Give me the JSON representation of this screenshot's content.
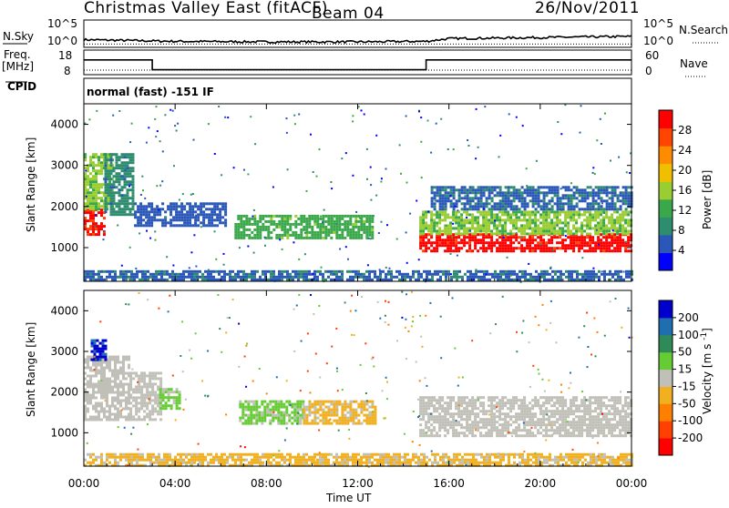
{
  "header": {
    "title": "Christmas Valley East (fitACF)",
    "beam": "Beam 04",
    "date": "26/Nov/2011"
  },
  "strip_labels": {
    "nsky": "N.Sky",
    "nsearch": "N.Search",
    "freq": "Freq.",
    "freq_unit": "[MHz]",
    "nave": "Nave",
    "cpid": "CPID",
    "cpid_value": "normal (fast) -151 IF"
  },
  "noise_axis": {
    "left_ticks": [
      "10^5",
      "10^0"
    ],
    "right_ticks": [
      "10^5",
      "10^0"
    ]
  },
  "freq_axis": {
    "left_ticks": [
      "18",
      "8"
    ],
    "right_ticks": [
      "60",
      "0"
    ]
  },
  "time_axis": {
    "label": "Time UT",
    "ticks": [
      "00:00",
      "04:00",
      "08:00",
      "12:00",
      "16:00",
      "20:00",
      "00:00"
    ]
  },
  "power_panel": {
    "ylabel": "Slant Range [km]",
    "yticks": [
      "4000",
      "3000",
      "2000",
      "1000"
    ],
    "colorbar_label": "Power [dB]",
    "colorbar_ticks": [
      "28",
      "24",
      "20",
      "16",
      "12",
      "8",
      "4"
    ]
  },
  "velocity_panel": {
    "ylabel": "Slant Range [km]",
    "yticks": [
      "4000",
      "3000",
      "2000",
      "1000"
    ],
    "colorbar_label": "Velocity [m s^-1]",
    "colorbar_ticks": [
      "200",
      "100",
      "50",
      "15",
      "-15",
      "-50",
      "-100",
      "-200"
    ]
  },
  "colors": {
    "power_scale": [
      "#0000ff",
      "#2a57b8",
      "#2f8d6f",
      "#3aa84a",
      "#9acd32",
      "#f0c000",
      "#ff8c00",
      "#ff4500",
      "#ff0000"
    ],
    "velocity_scale": [
      "#0000cc",
      "#1f6fb0",
      "#2e8b57",
      "#66cc33",
      "#c0c0b8",
      "#f0b020",
      "#ff8000",
      "#ff4000",
      "#ff0000"
    ]
  },
  "chart_data": [
    {
      "type": "line",
      "name": "Noise (N.Sky / N.Search)",
      "x": [
        "00:00",
        "04:00",
        "08:00",
        "12:00",
        "15:00",
        "16:00",
        "20:00",
        "24:00"
      ],
      "y_log_sky": [
        1.4,
        1.1,
        1.0,
        1.0,
        1.1,
        1.6,
        1.8,
        2.0
      ],
      "y_log_search": [
        0.6,
        0.6,
        0.6,
        0.6,
        0.6,
        0.6,
        0.6,
        0.6
      ],
      "ylim_log": [
        0,
        5
      ]
    },
    {
      "type": "line",
      "name": "Frequency / Nave",
      "x_hours": [
        0,
        3,
        3,
        15,
        15,
        24
      ],
      "freq_mhz": [
        14,
        14,
        10,
        10,
        14,
        14
      ],
      "ylim": [
        8,
        18
      ]
    },
    {
      "type": "heatmap",
      "name": "Power",
      "x_range_hours": [
        0,
        24
      ],
      "ylim_km": [
        180,
        4500
      ],
      "zlim_db": [
        0,
        30
      ],
      "regions": [
        {
          "t": [
            0.0,
            0.9
          ],
          "r": [
            1350,
            1950
          ],
          "v": 27
        },
        {
          "t": [
            0.0,
            1.2
          ],
          "r": [
            1950,
            3300
          ],
          "v": 14
        },
        {
          "t": [
            0.9,
            2.2
          ],
          "r": [
            1800,
            3300
          ],
          "v": 8
        },
        {
          "t": [
            2.2,
            6.2
          ],
          "r": [
            1550,
            2100
          ],
          "v": 5
        },
        {
          "t": [
            6.6,
            12.6
          ],
          "r": [
            1250,
            1800
          ],
          "v": 12
        },
        {
          "t": [
            14.7,
            24.0
          ],
          "r": [
            950,
            1350
          ],
          "v": 28
        },
        {
          "t": [
            14.7,
            24.0
          ],
          "r": [
            1350,
            1900
          ],
          "v": 14
        },
        {
          "t": [
            15.2,
            24.0
          ],
          "r": [
            1950,
            2500
          ],
          "v": 6
        },
        {
          "t": [
            0.0,
            24.0
          ],
          "r": [
            200,
            450
          ],
          "v": 6
        }
      ]
    },
    {
      "type": "heatmap",
      "name": "Velocity",
      "x_range_hours": [
        0,
        24
      ],
      "ylim_km": [
        180,
        4500
      ],
      "zlim": [
        -250,
        250
      ],
      "regions": [
        {
          "t": [
            0.0,
            2.0
          ],
          "r": [
            1300,
            2900
          ],
          "v": 0
        },
        {
          "t": [
            0.3,
            1.0
          ],
          "r": [
            2800,
            3300
          ],
          "v": 200
        },
        {
          "t": [
            2.0,
            3.4
          ],
          "r": [
            1300,
            2500
          ],
          "v": 0
        },
        {
          "t": [
            3.3,
            4.2
          ],
          "r": [
            1600,
            2100
          ],
          "v": 40
        },
        {
          "t": [
            6.8,
            9.6
          ],
          "r": [
            1250,
            1800
          ],
          "v": 40
        },
        {
          "t": [
            9.6,
            12.8
          ],
          "r": [
            1250,
            1800
          ],
          "v": -40
        },
        {
          "t": [
            14.7,
            24.0
          ],
          "r": [
            950,
            1900
          ],
          "v": 0
        },
        {
          "t": [
            0.0,
            24.0
          ],
          "r": [
            200,
            500
          ],
          "v": -40
        }
      ]
    }
  ]
}
